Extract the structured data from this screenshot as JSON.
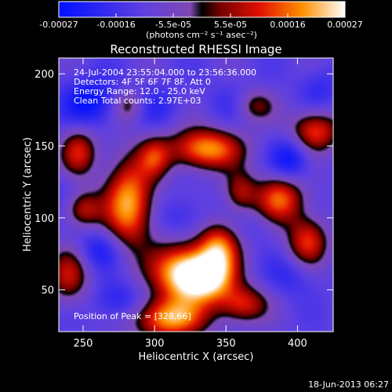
{
  "chart_data": {
    "type": "heatmap",
    "title": "Reconstructed RHESSI Image",
    "xlabel": "Heliocentric X (arcsec)",
    "ylabel": "Heliocentric Y (arcsec)",
    "xlim": [
      233,
      425
    ],
    "ylim": [
      21,
      211
    ],
    "xticks": [
      250,
      300,
      350,
      400
    ],
    "yticks": [
      50,
      100,
      150,
      200
    ],
    "colorbar": {
      "ticks": [
        "-0.00027",
        "-0.00016",
        "-5.5e-05",
        "5.5e-05",
        "0.00016",
        "0.00027"
      ],
      "label": "(photons cm⁻² s⁻¹ asec⁻²)",
      "range": [
        -0.00027,
        0.00027
      ]
    },
    "annotations": [
      "24-Jul-2004 23:55:04.000 to 23:56:36.000",
      "Detectors: 4F 5F 6F 7F 8F, Att 0",
      "Energy Range: 12.0 - 25.0 keV",
      "Clean     Total counts: 2.97E+03"
    ],
    "peak_label": "Position of Peak = [328,66]",
    "features": [
      {
        "x": 320,
        "y": 62,
        "v": 0.00027,
        "sx": 16,
        "sy": 14
      },
      {
        "x": 338,
        "y": 58,
        "v": 0.00022,
        "sx": 14,
        "sy": 12
      },
      {
        "x": 310,
        "y": 30,
        "v": 0.00024,
        "sx": 18,
        "sy": 10
      },
      {
        "x": 282,
        "y": 110,
        "v": 0.00025,
        "sx": 12,
        "sy": 22
      },
      {
        "x": 336,
        "y": 148,
        "v": 0.00024,
        "sx": 18,
        "sy": 10
      },
      {
        "x": 345,
        "y": 80,
        "v": 0.00018,
        "sx": 10,
        "sy": 12
      },
      {
        "x": 388,
        "y": 114,
        "v": 0.0002,
        "sx": 12,
        "sy": 12
      },
      {
        "x": 412,
        "y": 160,
        "v": 0.00018,
        "sx": 12,
        "sy": 10
      },
      {
        "x": 407,
        "y": 84,
        "v": 0.00016,
        "sx": 10,
        "sy": 12
      },
      {
        "x": 247,
        "y": 146,
        "v": 0.00014,
        "sx": 9,
        "sy": 12
      },
      {
        "x": 250,
        "y": 106,
        "v": 0.00012,
        "sx": 9,
        "sy": 9
      },
      {
        "x": 362,
        "y": 40,
        "v": 0.00014,
        "sx": 12,
        "sy": 9
      },
      {
        "x": 240,
        "y": 60,
        "v": 0.00012,
        "sx": 10,
        "sy": 14
      },
      {
        "x": 300,
        "y": 142,
        "v": 0.0001,
        "sx": 8,
        "sy": 10
      },
      {
        "x": 360,
        "y": 118,
        "v": 0.0001,
        "sx": 8,
        "sy": 10
      },
      {
        "x": 282,
        "y": 178,
        "v": 8e-05,
        "sx": 8,
        "sy": 8
      },
      {
        "x": 370,
        "y": 178,
        "v": 8e-05,
        "sx": 10,
        "sy": 8
      },
      {
        "x": 255,
        "y": 180,
        "v": -0.00022,
        "sx": 14,
        "sy": 12
      },
      {
        "x": 300,
        "y": 178,
        "v": -0.00014,
        "sx": 12,
        "sy": 10
      },
      {
        "x": 395,
        "y": 140,
        "v": -0.00022,
        "sx": 10,
        "sy": 12
      },
      {
        "x": 262,
        "y": 78,
        "v": -0.00018,
        "sx": 12,
        "sy": 10
      },
      {
        "x": 275,
        "y": 42,
        "v": -0.00018,
        "sx": 12,
        "sy": 10
      },
      {
        "x": 395,
        "y": 60,
        "v": -0.00014,
        "sx": 12,
        "sy": 10
      },
      {
        "x": 355,
        "y": 180,
        "v": -0.00012,
        "sx": 12,
        "sy": 10
      },
      {
        "x": 320,
        "y": 100,
        "v": -0.00014,
        "sx": 12,
        "sy": 10
      },
      {
        "x": 415,
        "y": 190,
        "v": -0.00014,
        "sx": 10,
        "sy": 10
      },
      {
        "x": 238,
        "y": 120,
        "v": -0.0001,
        "sx": 8,
        "sy": 10
      },
      {
        "x": 372,
        "y": 95,
        "v": -0.0001,
        "sx": 10,
        "sy": 8
      }
    ]
  },
  "footer": {
    "timestamp": "18-Jun-2013 06:27"
  }
}
